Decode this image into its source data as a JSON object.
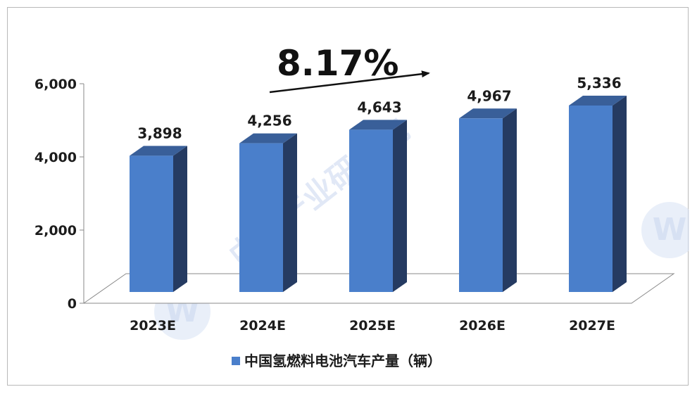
{
  "chart_data": {
    "type": "bar",
    "style": "3d-column",
    "categories": [
      "2023E",
      "2024E",
      "2025E",
      "2026E",
      "2027E"
    ],
    "series": [
      {
        "name": "中国氢燃料电池汽车产量（辆）",
        "values": [
          3898,
          4256,
          4643,
          4967,
          5336
        ]
      }
    ],
    "data_labels": [
      "3,898",
      "4,256",
      "4,643",
      "4,967",
      "5,336"
    ],
    "ylim": [
      0,
      6000
    ],
    "yticks": [
      0,
      2000,
      4000,
      6000
    ],
    "ytick_labels": [
      "0",
      "2,000",
      "4,000",
      "6,000"
    ],
    "annotation": {
      "text": "8.17%"
    },
    "legend_position": "bottom",
    "grid": false,
    "colors": {
      "bar_front": "#4a7fcb",
      "bar_side": "#253b62",
      "bar_top": "#395f99",
      "floor": "#ffffff"
    }
  },
  "watermark": {
    "text": "中国产业研究院",
    "icon_glyph": "W"
  }
}
